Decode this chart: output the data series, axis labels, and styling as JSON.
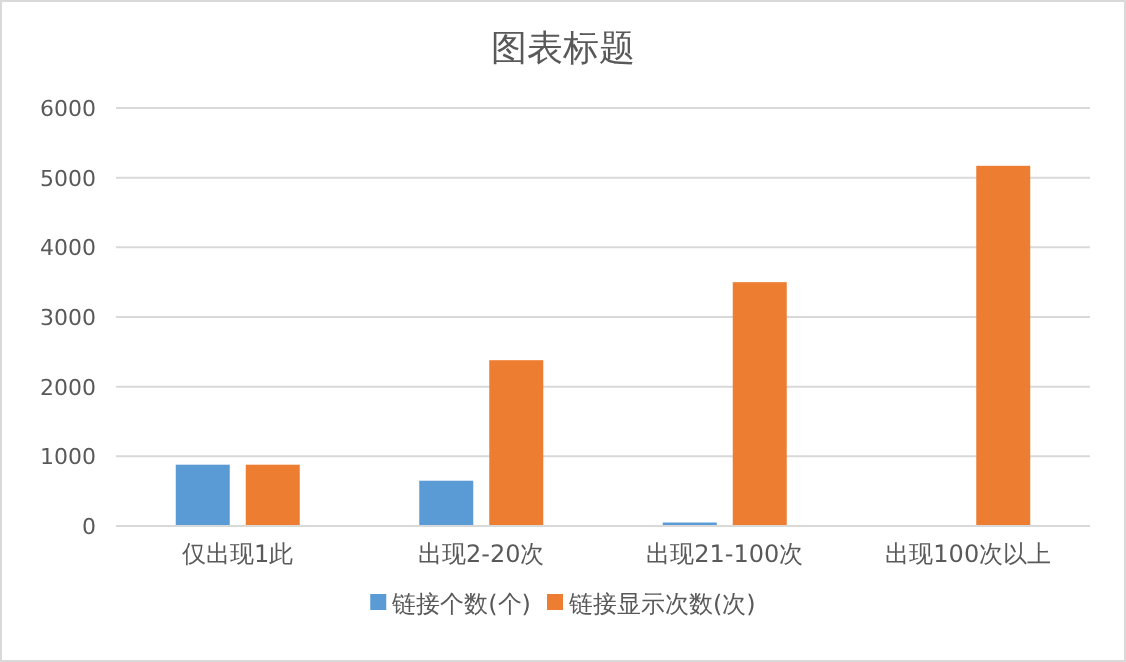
{
  "chart_data": {
    "type": "bar",
    "title": "图表标题",
    "categories": [
      "仅出现1此",
      "出现2-20次",
      "出现21-100次",
      "出现100次以上"
    ],
    "series": [
      {
        "name": "链接个数(个)",
        "color": "#5b9bd5",
        "values": [
          880,
          650,
          50,
          0
        ]
      },
      {
        "name": "链接显示次数(次)",
        "color": "#ed7d31",
        "values": [
          880,
          2380,
          3500,
          5170
        ]
      }
    ],
    "ylim": [
      0,
      6000
    ],
    "yticks": [
      0,
      1000,
      2000,
      3000,
      4000,
      5000,
      6000
    ],
    "grid": "y",
    "legend": "bottom"
  }
}
